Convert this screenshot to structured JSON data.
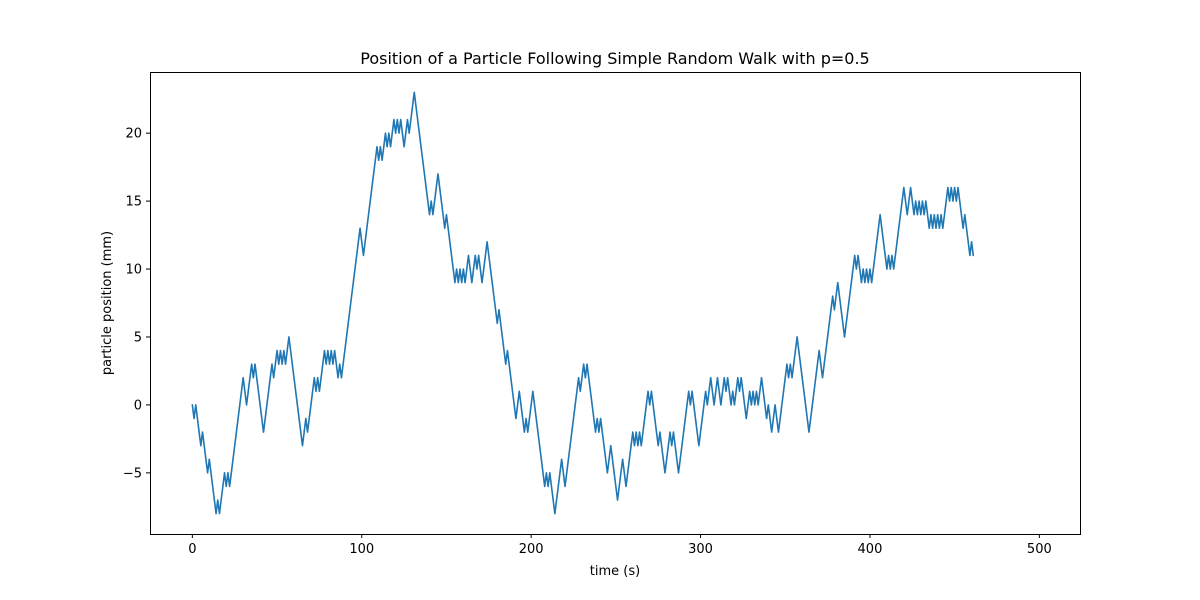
{
  "chart_data": {
    "type": "line",
    "title": "Position of a Particle Following Simple Random Walk with p=0.5",
    "xlabel": "time (s)",
    "ylabel": "particle position (mm)",
    "xlim": [
      -25,
      524
    ],
    "ylim": [
      -9.5,
      24.5
    ],
    "xticks": [
      0,
      100,
      200,
      300,
      400,
      500
    ],
    "yticks": [
      -5,
      0,
      5,
      10,
      15,
      20
    ],
    "grid": false,
    "series_color": "#1f77b4",
    "series": [
      {
        "values": [
          0,
          -1,
          0,
          -1,
          -2,
          -3,
          -2,
          -3,
          -4,
          -5,
          -4,
          -5,
          -6,
          -7,
          -8,
          -7,
          -8,
          -7,
          -6,
          -5,
          -6,
          -5,
          -6,
          -5,
          -4,
          -3,
          -2,
          -1,
          0,
          1,
          2,
          1,
          0,
          1,
          2,
          3,
          2,
          3,
          2,
          1,
          0,
          -1,
          -2,
          -1,
          0,
          1,
          2,
          3,
          2,
          3,
          4,
          3,
          4,
          3,
          4,
          3,
          4,
          5,
          4,
          3,
          2,
          1,
          0,
          -1,
          -2,
          -3,
          -2,
          -1,
          -2,
          -1,
          0,
          1,
          2,
          1,
          2,
          1,
          2,
          3,
          4,
          3,
          4,
          3,
          4,
          3,
          4,
          3,
          2,
          3,
          2,
          3,
          4,
          5,
          6,
          7,
          8,
          9,
          10,
          11,
          12,
          13,
          12,
          11,
          12,
          13,
          14,
          15,
          16,
          17,
          18,
          19,
          18,
          19,
          18,
          19,
          20,
          19,
          20,
          19,
          20,
          21,
          20,
          21,
          20,
          21,
          20,
          19,
          20,
          21,
          20,
          21,
          22,
          23,
          22,
          21,
          20,
          19,
          18,
          17,
          16,
          15,
          14,
          15,
          14,
          15,
          16,
          17,
          16,
          15,
          14,
          13,
          14,
          13,
          12,
          11,
          10,
          9,
          10,
          9,
          10,
          9,
          10,
          9,
          10,
          11,
          10,
          9,
          10,
          11,
          10,
          11,
          10,
          9,
          10,
          11,
          12,
          11,
          10,
          9,
          8,
          7,
          6,
          7,
          6,
          5,
          4,
          3,
          4,
          3,
          2,
          1,
          0,
          -1,
          0,
          1,
          0,
          -1,
          -2,
          -1,
          -2,
          -1,
          0,
          1,
          0,
          -1,
          -2,
          -3,
          -4,
          -5,
          -6,
          -5,
          -6,
          -5,
          -6,
          -7,
          -8,
          -7,
          -6,
          -5,
          -4,
          -5,
          -6,
          -5,
          -4,
          -3,
          -2,
          -1,
          0,
          1,
          2,
          1,
          2,
          3,
          2,
          3,
          2,
          1,
          0,
          -1,
          -2,
          -1,
          -2,
          -1,
          -2,
          -3,
          -4,
          -5,
          -4,
          -3,
          -4,
          -5,
          -6,
          -7,
          -6,
          -5,
          -4,
          -5,
          -6,
          -5,
          -4,
          -3,
          -2,
          -3,
          -2,
          -3,
          -2,
          -3,
          -2,
          -1,
          0,
          1,
          0,
          1,
          0,
          -1,
          -2,
          -3,
          -2,
          -3,
          -4,
          -5,
          -4,
          -3,
          -2,
          -3,
          -2,
          -3,
          -4,
          -5,
          -4,
          -3,
          -2,
          -1,
          0,
          1,
          0,
          1,
          0,
          -1,
          -2,
          -3,
          -2,
          -1,
          0,
          1,
          0,
          1,
          2,
          1,
          0,
          1,
          2,
          1,
          0,
          1,
          2,
          1,
          2,
          1,
          0,
          1,
          0,
          1,
          2,
          1,
          2,
          1,
          0,
          -1,
          0,
          1,
          0,
          1,
          0,
          1,
          0,
          1,
          2,
          1,
          0,
          -1,
          0,
          -1,
          -2,
          -1,
          0,
          -1,
          -2,
          -1,
          0,
          1,
          2,
          3,
          2,
          3,
          2,
          3,
          4,
          5,
          4,
          3,
          2,
          1,
          0,
          -1,
          -2,
          -1,
          0,
          1,
          2,
          3,
          4,
          3,
          2,
          3,
          4,
          5,
          6,
          7,
          8,
          7,
          8,
          9,
          8,
          7,
          6,
          5,
          6,
          7,
          8,
          9,
          10,
          11,
          10,
          11,
          10,
          9,
          10,
          9,
          10,
          9,
          10,
          9,
          10,
          11,
          12,
          13,
          14,
          13,
          12,
          11,
          10,
          11,
          10,
          11,
          10,
          11,
          12,
          13,
          14,
          15,
          16,
          15,
          14,
          15,
          16,
          15,
          14,
          15,
          14,
          15,
          14,
          15,
          14,
          15,
          14,
          13,
          14,
          13,
          14,
          13,
          14,
          13,
          14,
          13,
          14,
          15,
          16,
          15,
          16,
          15,
          16,
          15,
          16,
          15,
          14,
          13,
          14,
          13,
          12,
          11,
          12,
          11
        ]
      }
    ]
  }
}
